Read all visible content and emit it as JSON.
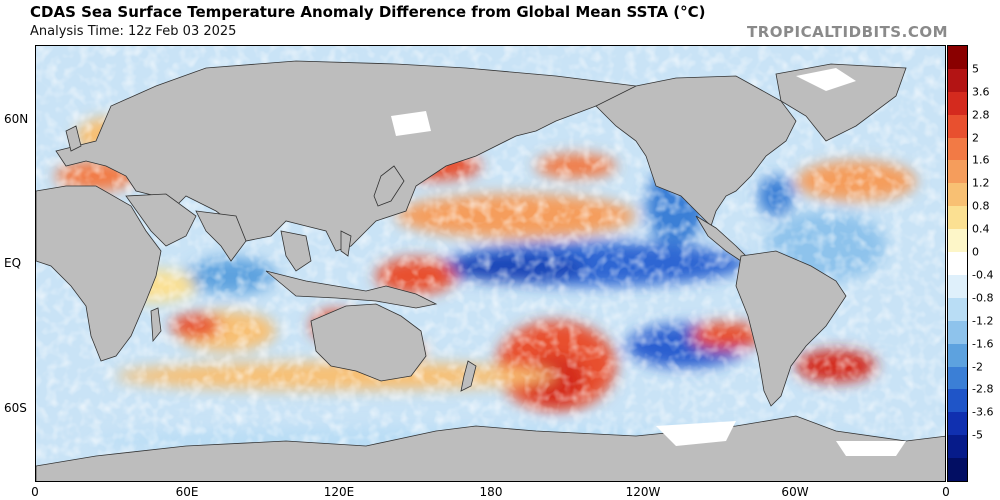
{
  "header": {
    "title": "CDAS Sea Surface Temperature Anomaly Difference from Global Mean SSTA (°C)",
    "analysis_time": "Analysis Time: 12z Feb 03 2025",
    "brand": "TROPICALTIDBITS.COM"
  },
  "map": {
    "projection": "equirectangular",
    "lat_labels": [
      "60N",
      "EQ",
      "60S"
    ],
    "lon_labels": [
      "0",
      "60E",
      "120E",
      "180",
      "120W",
      "60W",
      "0"
    ],
    "land_color": "#bdbdbd",
    "ocean_background": "#ffffff"
  },
  "colorbar": {
    "labels": [
      "5",
      "3.6",
      "2.8",
      "2",
      "1.6",
      "1.2",
      "0.8",
      "0.4",
      "0",
      "-0.4",
      "-0.8",
      "-1.2",
      "-1.6",
      "-2",
      "-2.8",
      "-3.6",
      "-5"
    ],
    "colors": [
      "#8a0000",
      "#b31414",
      "#d42a1e",
      "#e8502f",
      "#f27a45",
      "#f59d5c",
      "#f8c073",
      "#fbe092",
      "#fdf6c8",
      "#ffffff",
      "#dff0fb",
      "#b9ddf5",
      "#8ec3ec",
      "#5da2df",
      "#3b7fd6",
      "#1f55c8",
      "#1030b0",
      "#061b8a",
      "#020e63"
    ]
  }
}
